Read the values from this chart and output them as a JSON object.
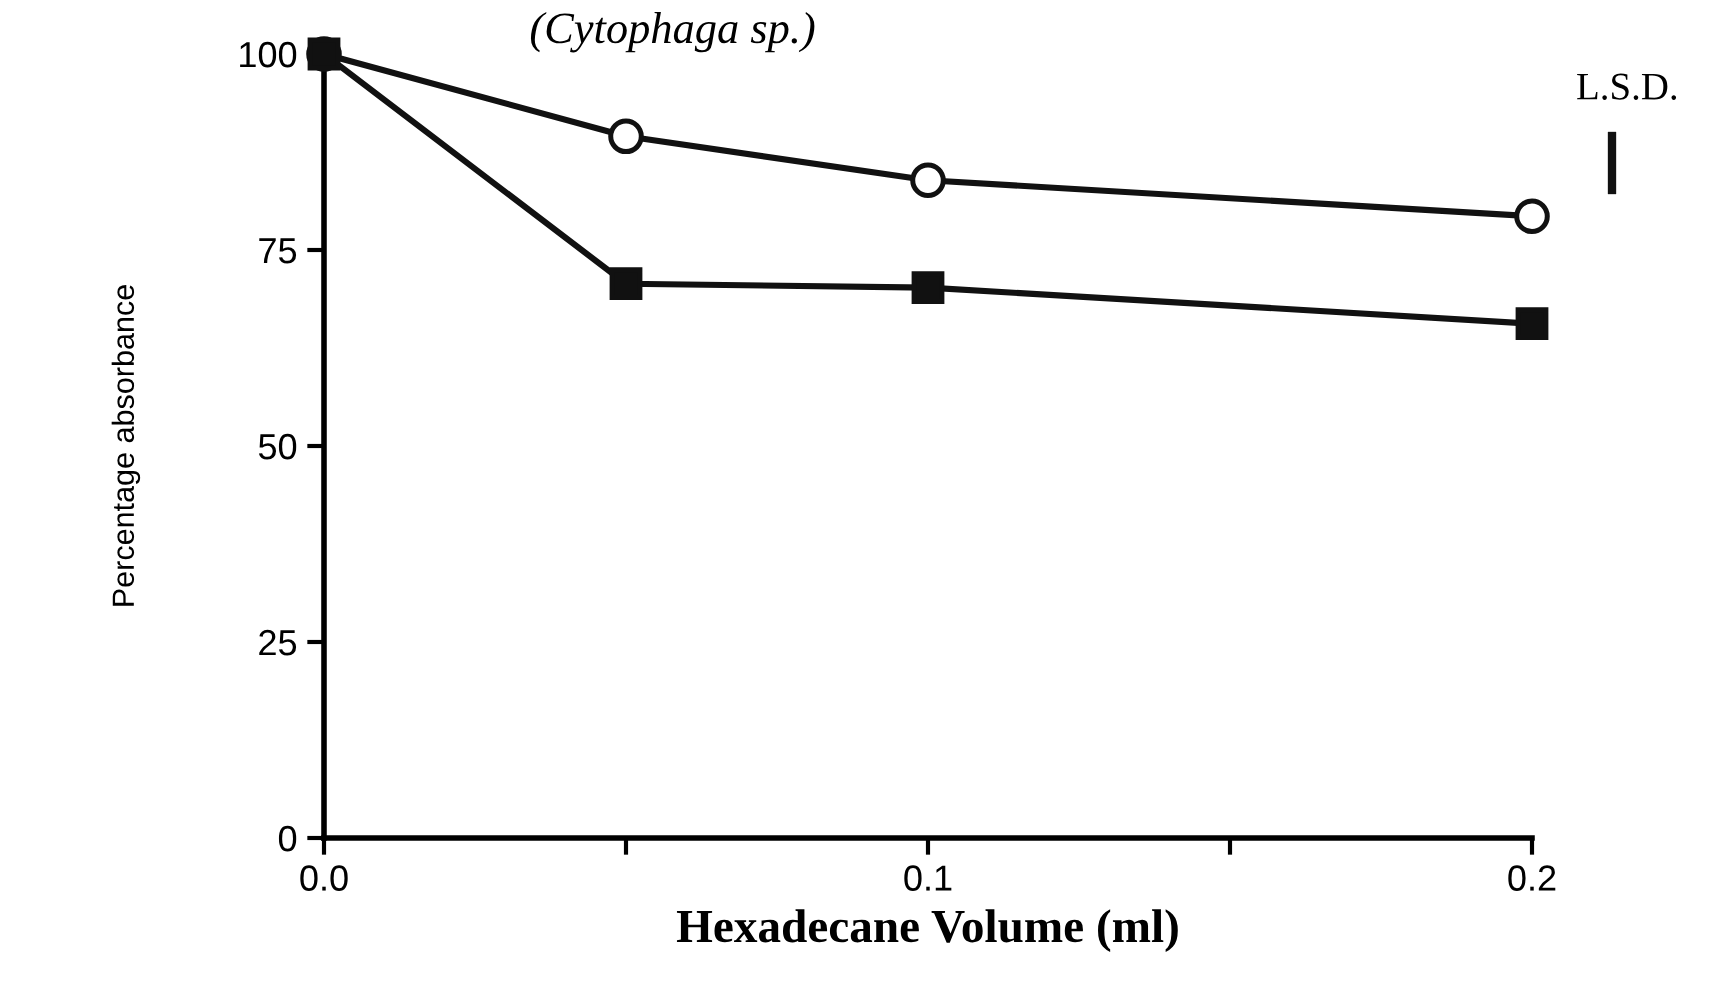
{
  "chart_data": {
    "type": "line",
    "title": "(Cytophaga sp.)",
    "xlabel": "Hexadecane Volume (ml)",
    "ylabel": "Percentage absorbance",
    "x": [
      0.0,
      0.05,
      0.1,
      0.2
    ],
    "series": [
      {
        "color": "#111111",
        "marker": "circle",
        "values": [
          100,
          89.5,
          83.9,
          79.3
        ]
      },
      {
        "color": "#111111",
        "marker": "square",
        "values": [
          100,
          70.7,
          70.2,
          65.6
        ]
      }
    ],
    "xlim": [
      0,
      0.2
    ],
    "ylim": [
      0,
      100
    ],
    "xticks": [
      {
        "value": 0,
        "label": "0.0"
      },
      {
        "value": 0.05,
        "label": null
      },
      {
        "value": 0.1,
        "label": "0.1"
      },
      {
        "value": 0.15,
        "label": null
      },
      {
        "value": 0.2,
        "label": "0.2"
      }
    ],
    "yticks": [
      0,
      25,
      50,
      75,
      100
    ],
    "annotations": [
      "L.S.D."
    ],
    "grid": false,
    "legend": false,
    "line_style": "solid"
  }
}
